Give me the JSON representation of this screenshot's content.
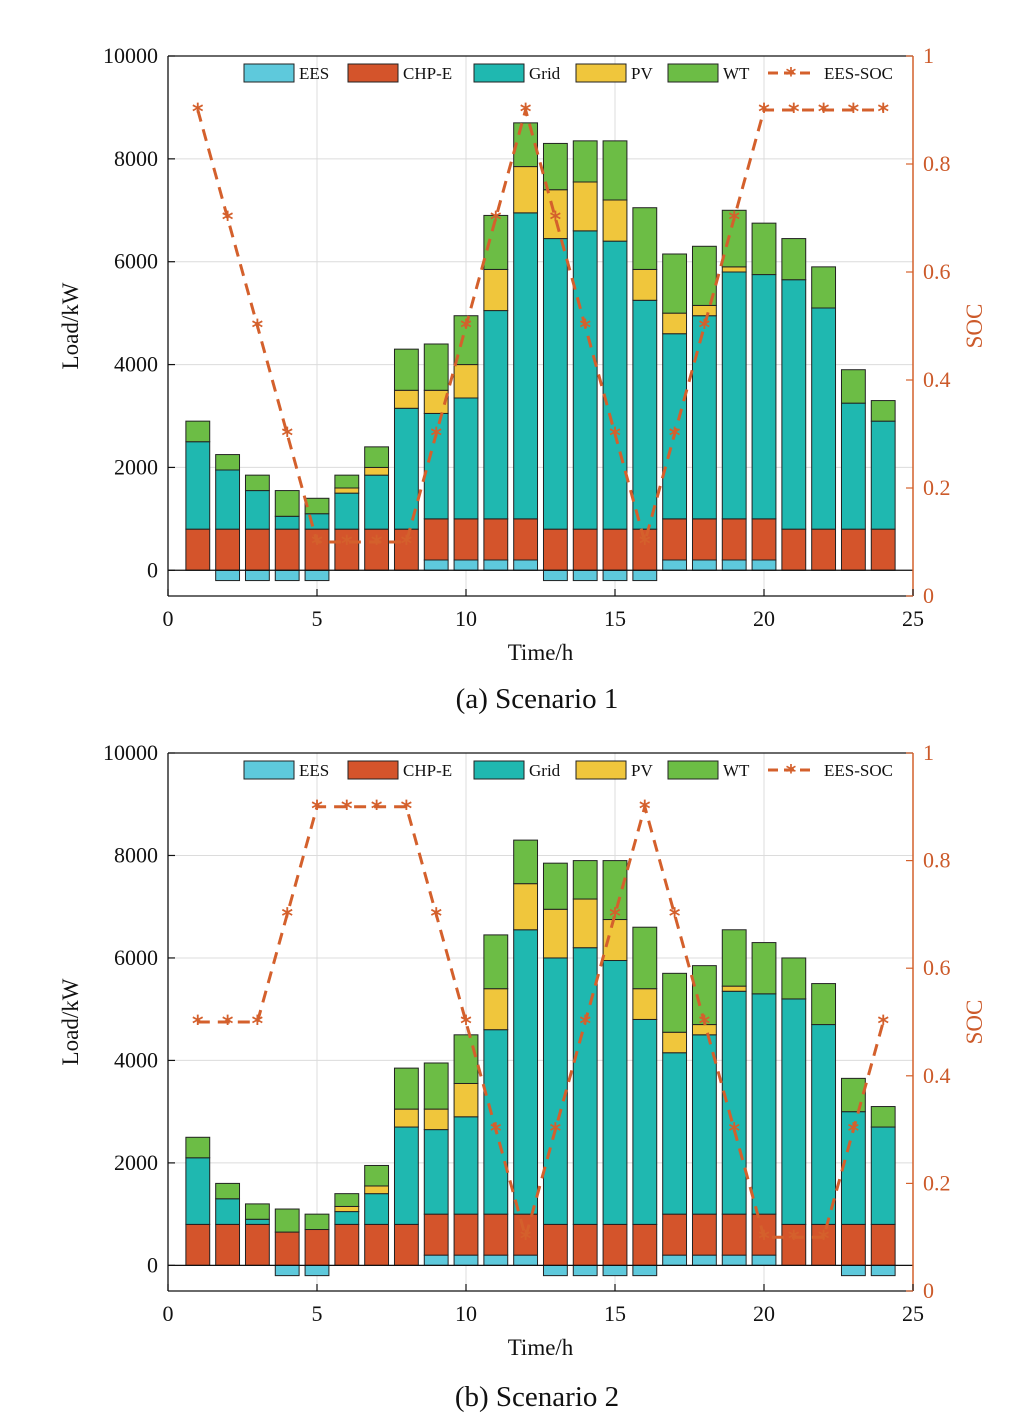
{
  "colors": {
    "EES": "#5ec9dc",
    "CHP-E": "#d4542b",
    "Grid": "#1fb8b0",
    "PV": "#f0c63c",
    "WT": "#6cbd45",
    "EES-SOC": "#d4602c"
  },
  "chart_data": [
    {
      "type": "bar",
      "caption": "(a) Scenario 1",
      "xlabel": "Time/h",
      "ylabel": "Load/kW",
      "y2label": "SOC",
      "xlim": [
        0,
        25
      ],
      "ylim": [
        -500,
        10000
      ],
      "y2lim": [
        0,
        1
      ],
      "xticks": [
        0,
        5,
        10,
        15,
        20,
        25
      ],
      "yticks": [
        0,
        2000,
        4000,
        6000,
        8000,
        10000
      ],
      "y2ticks": [
        0,
        0.2,
        0.4,
        0.6,
        0.8,
        1
      ],
      "legend": [
        "EES",
        "CHP-E",
        "Grid",
        "PV",
        "WT",
        "EES-SOC"
      ],
      "legend_placement": "top",
      "grid": true,
      "x": [
        1,
        2,
        3,
        4,
        5,
        6,
        7,
        8,
        9,
        10,
        11,
        12,
        13,
        14,
        15,
        16,
        17,
        18,
        19,
        20,
        21,
        22,
        23,
        24
      ],
      "series": [
        {
          "name": "EES",
          "values": [
            0,
            -200,
            -200,
            -200,
            -200,
            0,
            0,
            0,
            200,
            200,
            200,
            200,
            -200,
            -200,
            -200,
            -200,
            200,
            200,
            200,
            200,
            0,
            0,
            0,
            0
          ]
        },
        {
          "name": "CHP-E",
          "values": [
            800,
            800,
            800,
            800,
            800,
            800,
            800,
            800,
            800,
            800,
            800,
            800,
            800,
            800,
            800,
            800,
            800,
            800,
            800,
            800,
            800,
            800,
            800,
            800
          ]
        },
        {
          "name": "Grid",
          "values": [
            1700,
            1150,
            750,
            250,
            300,
            700,
            1050,
            2350,
            2050,
            2350,
            4050,
            5950,
            5650,
            5800,
            5600,
            4450,
            3600,
            3950,
            4800,
            4750,
            4850,
            4300,
            2450,
            2100
          ]
        },
        {
          "name": "PV",
          "values": [
            0,
            0,
            0,
            0,
            0,
            100,
            150,
            350,
            450,
            650,
            800,
            900,
            950,
            950,
            800,
            600,
            400,
            200,
            100,
            0,
            0,
            0,
            0,
            0
          ]
        },
        {
          "name": "WT",
          "values": [
            400,
            300,
            300,
            500,
            300,
            250,
            400,
            800,
            900,
            950,
            1050,
            850,
            900,
            800,
            1150,
            1200,
            1150,
            1150,
            1100,
            1000,
            800,
            800,
            650,
            400
          ]
        },
        {
          "name": "EES-SOC",
          "type": "line",
          "axis": "right",
          "values": [
            0.9,
            0.7,
            0.5,
            0.3,
            0.1,
            0.1,
            0.1,
            0.1,
            0.3,
            0.5,
            0.7,
            0.9,
            0.7,
            0.5,
            0.3,
            0.1,
            0.3,
            0.5,
            0.7,
            0.9,
            0.9,
            0.9,
            0.9,
            0.9
          ]
        }
      ]
    },
    {
      "type": "bar",
      "caption": "(b) Scenario 2",
      "xlabel": "Time/h",
      "ylabel": "Load/kW",
      "y2label": "SOC",
      "xlim": [
        0,
        25
      ],
      "ylim": [
        -500,
        10000
      ],
      "y2lim": [
        0,
        1
      ],
      "xticks": [
        0,
        5,
        10,
        15,
        20,
        25
      ],
      "yticks": [
        0,
        2000,
        4000,
        6000,
        8000,
        10000
      ],
      "y2ticks": [
        0,
        0.2,
        0.4,
        0.6,
        0.8,
        1
      ],
      "legend": [
        "EES",
        "CHP-E",
        "Grid",
        "PV",
        "WT",
        "EES-SOC"
      ],
      "legend_placement": "top",
      "grid": true,
      "x": [
        1,
        2,
        3,
        4,
        5,
        6,
        7,
        8,
        9,
        10,
        11,
        12,
        13,
        14,
        15,
        16,
        17,
        18,
        19,
        20,
        21,
        22,
        23,
        24
      ],
      "series": [
        {
          "name": "EES",
          "values": [
            0,
            0,
            0,
            -200,
            -200,
            0,
            0,
            0,
            200,
            200,
            200,
            200,
            -200,
            -200,
            -200,
            -200,
            200,
            200,
            200,
            200,
            0,
            0,
            -200,
            -200
          ]
        },
        {
          "name": "CHP-E",
          "values": [
            800,
            800,
            800,
            650,
            700,
            800,
            800,
            800,
            800,
            800,
            800,
            800,
            800,
            800,
            800,
            800,
            800,
            800,
            800,
            800,
            800,
            800,
            800,
            800
          ]
        },
        {
          "name": "Grid",
          "values": [
            1300,
            500,
            100,
            0,
            0,
            250,
            600,
            1900,
            1650,
            1900,
            3600,
            5550,
            5200,
            5400,
            5150,
            4000,
            3150,
            3500,
            4350,
            4300,
            4400,
            3900,
            2200,
            1900
          ]
        },
        {
          "name": "PV",
          "values": [
            0,
            0,
            0,
            0,
            0,
            100,
            150,
            350,
            400,
            650,
            800,
            900,
            950,
            950,
            800,
            600,
            400,
            200,
            100,
            0,
            0,
            0,
            0,
            0
          ]
        },
        {
          "name": "WT",
          "values": [
            400,
            300,
            300,
            450,
            300,
            250,
            400,
            800,
            900,
            950,
            1050,
            850,
            900,
            750,
            1150,
            1200,
            1150,
            1150,
            1100,
            1000,
            800,
            800,
            650,
            400
          ]
        },
        {
          "name": "EES-SOC",
          "type": "line",
          "axis": "right",
          "values": [
            0.5,
            0.5,
            0.5,
            0.7,
            0.9,
            0.9,
            0.9,
            0.9,
            0.7,
            0.5,
            0.3,
            0.1,
            0.3,
            0.5,
            0.7,
            0.9,
            0.7,
            0.5,
            0.3,
            0.1,
            0.1,
            0.1,
            0.3,
            0.5
          ]
        }
      ]
    }
  ]
}
